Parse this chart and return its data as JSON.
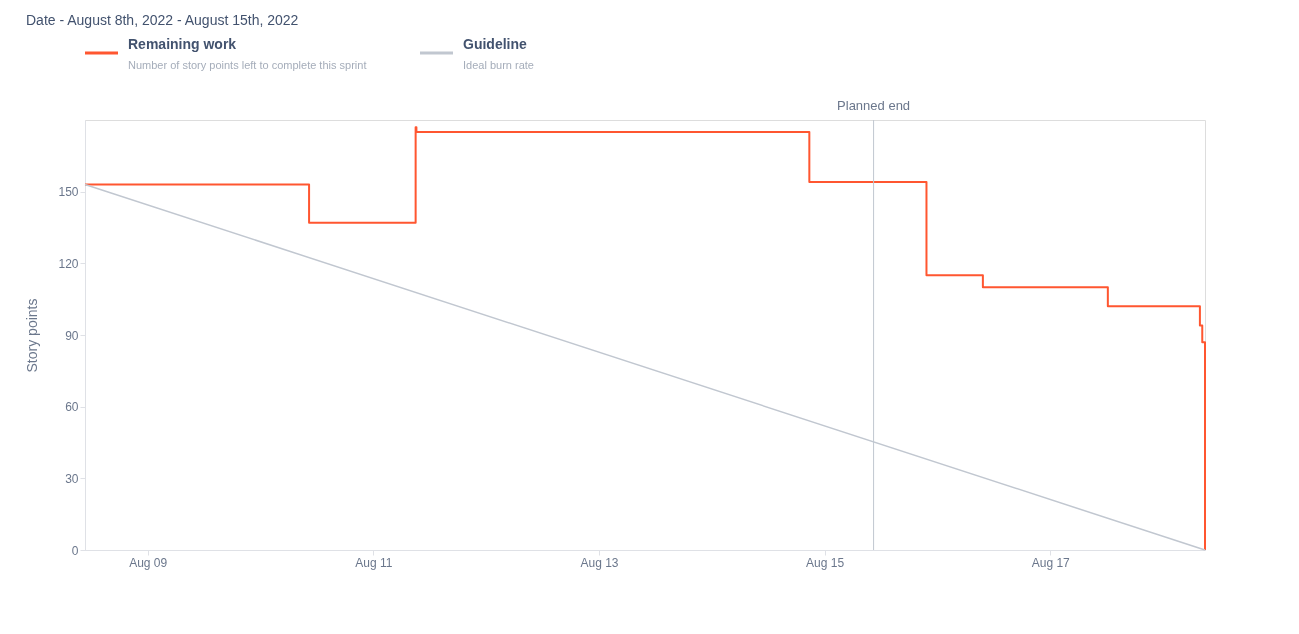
{
  "chart_data": {
    "type": "line",
    "title": "Date - August 8th, 2022 - August 15th, 2022",
    "ylabel": "Story points",
    "series": [
      {
        "name": "Remaining work",
        "type": "step",
        "color": "#ff5630",
        "x": [
          "2022-08-08T10:40",
          "2022-08-10T10:20",
          "2022-08-11T09:00",
          "2022-08-11T09:10",
          "2022-08-14T20:45",
          "2022-08-15T21:40",
          "2022-08-16T09:40",
          "2022-08-17T12:15",
          "2022-08-18T07:50",
          "2022-08-18T08:20",
          "2022-08-18T08:55"
        ],
        "values": [
          153,
          137,
          177,
          175,
          154,
          115,
          110,
          102,
          94,
          87,
          0
        ]
      },
      {
        "name": "Guideline",
        "color": "#c1c7d0",
        "x": [
          "2022-08-08T10:40",
          "2022-08-18T08:55"
        ],
        "values": [
          153,
          0
        ]
      }
    ],
    "annotations": [
      "Number of story points left to complete this sprint",
      "Ideal burn rate"
    ],
    "ref_lines": [
      {
        "axis": "x",
        "value": "2022-08-15T10:25",
        "label": "Planned end",
        "color": "#c1c7d0"
      }
    ],
    "xlim": [
      "2022-08-08T10:40",
      "2022-08-18T08:55"
    ],
    "xticks": [
      {
        "value": "2022-08-09",
        "label": "Aug 09"
      },
      {
        "value": "2022-08-11",
        "label": "Aug 11"
      },
      {
        "value": "2022-08-13",
        "label": "Aug 13"
      },
      {
        "value": "2022-08-15",
        "label": "Aug 15"
      },
      {
        "value": "2022-08-17",
        "label": "Aug 17"
      }
    ],
    "ylim": [
      0,
      180
    ],
    "yticks": [
      0,
      30,
      60,
      90,
      120,
      150
    ],
    "grid": false,
    "legend": "top left"
  }
}
